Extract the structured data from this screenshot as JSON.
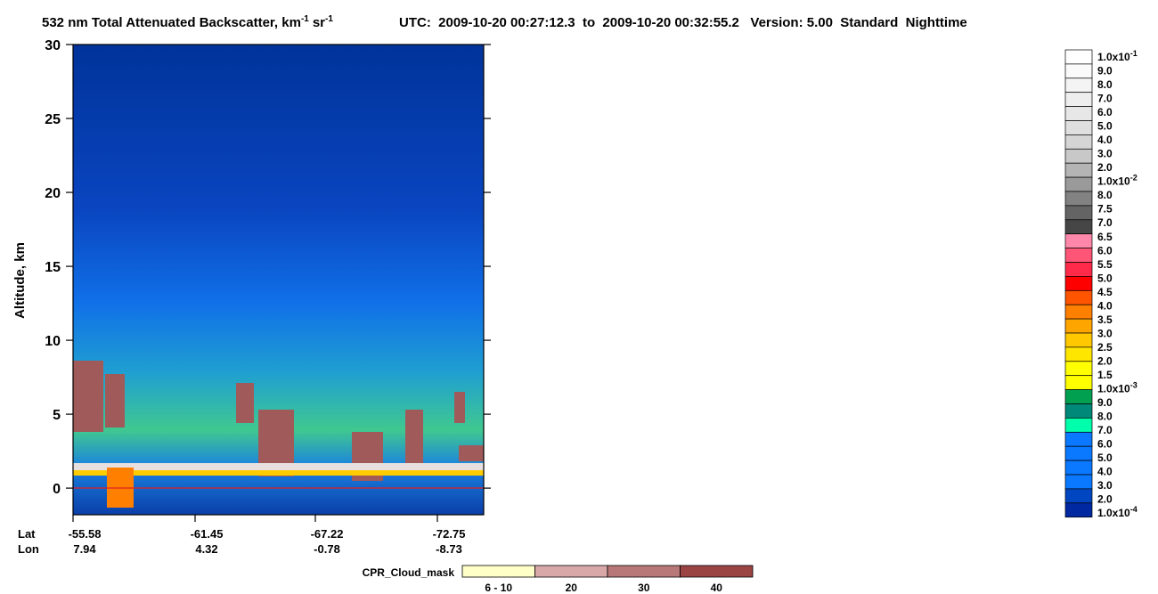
{
  "chart_data": {
    "type": "heatmap",
    "title": {
      "main": "532 nm Total Attenuated Backscatter, km",
      "sup1": "-1",
      "unit2": "sr",
      "sup2": "-1"
    },
    "info": "UTC:  2009-10-20 00:27:12.3  to  2009-10-20 00:32:55.2   Version: 5.00  Standard  Nighttime",
    "ylabel": "Altitude, km",
    "ylim": [
      -1.8,
      30
    ],
    "yticks": [
      0,
      5,
      10,
      15,
      20,
      25,
      30
    ],
    "x_rows": [
      {
        "name": "Lat",
        "values": [
          -55.58,
          -61.45,
          -67.22,
          -72.75
        ]
      },
      {
        "name": "Lon",
        "values": [
          7.94,
          4.32,
          -0.78,
          -8.73
        ]
      }
    ],
    "colorbar": {
      "labels": [
        {
          "text": "1.0x10",
          "sup": "-1"
        },
        "9.0",
        "8.0",
        "7.0",
        "6.0",
        "5.0",
        "4.0",
        "3.0",
        "2.0",
        {
          "text": "1.0x10",
          "sup": "-2"
        },
        "8.0",
        "7.5",
        "7.0",
        "6.5",
        "6.0",
        "5.5",
        "5.0",
        "4.5",
        "4.0",
        "3.5",
        "3.0",
        "2.5",
        "2.0",
        "1.5",
        {
          "text": "1.0x10",
          "sup": "-3"
        },
        "9.0",
        "8.0",
        "7.0",
        "6.0",
        "5.0",
        "4.0",
        "3.0",
        "2.0",
        {
          "text": "1.0x10",
          "sup": "-4"
        }
      ],
      "colors": [
        "#ffffff",
        "#fafafa",
        "#f4f4f4",
        "#eeeeee",
        "#e7e7e7",
        "#dfdfdf",
        "#d5d5d5",
        "#c8c8c8",
        "#b4b4b4",
        "#9a9a9a",
        "#828282",
        "#646464",
        "#464646",
        "#ff88aa",
        "#ff5577",
        "#ff2a4a",
        "#ff0000",
        "#ff5500",
        "#ff7f00",
        "#ffa500",
        "#ffc800",
        "#ffe600",
        "#ffff00",
        "#ffff00",
        "#00a050",
        "#008878",
        "#00ffaa",
        "#0a78ff",
        "#0a78ff",
        "#0a78ff",
        "#0a78ff",
        "#0046c0",
        "#0028a0"
      ]
    },
    "cloud_mask": {
      "title": "CPR_Cloud_mask",
      "labels": [
        "6 - 10",
        "20",
        "30",
        "40"
      ],
      "colors": [
        "#ffffc8",
        "#d8a8a8",
        "#b87878",
        "#9a4444"
      ]
    }
  }
}
